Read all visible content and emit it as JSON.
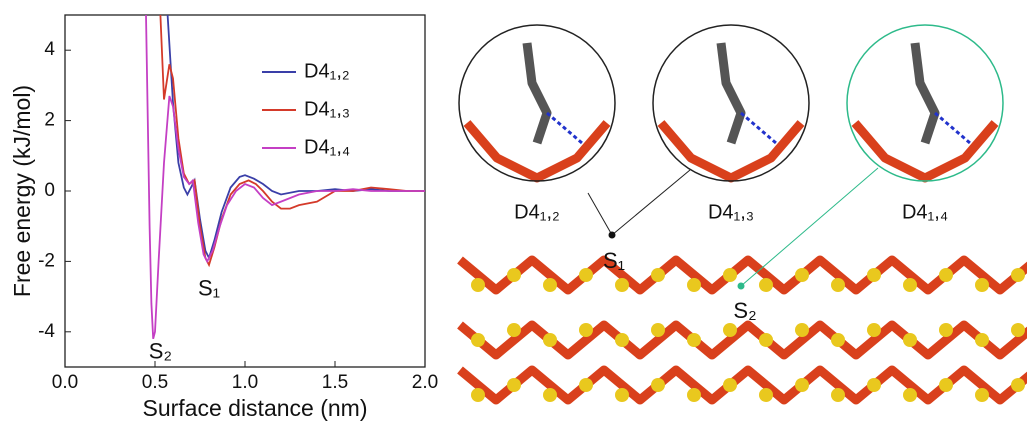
{
  "chart_data": {
    "type": "line",
    "x_label": "Surface distance (nm)",
    "y_label": "Free energy (kJ/mol)",
    "xlim": [
      0,
      2
    ],
    "ylim": [
      -5,
      5
    ],
    "xticks": [
      {
        "value": 0,
        "label": "0.0"
      },
      {
        "value": 0.5,
        "label": "0.5"
      },
      {
        "value": 1,
        "label": "1.0"
      },
      {
        "value": 1.5,
        "label": "1.5"
      },
      {
        "value": 2,
        "label": "2.0"
      }
    ],
    "yticks": [
      -4,
      -2,
      0,
      2,
      4
    ],
    "legend": "upper right",
    "series": [
      {
        "name": "D4₁,₂",
        "color": "#3a3fa8",
        "x": [
          0.57,
          0.6,
          0.63,
          0.66,
          0.68,
          0.7,
          0.72,
          0.75,
          0.78,
          0.8,
          0.83,
          0.87,
          0.92,
          0.97,
          1.0,
          1.05,
          1.1,
          1.15,
          1.2,
          1.3,
          1.4,
          1.5,
          1.6,
          1.7,
          1.8,
          1.9,
          2.0
        ],
        "values": [
          5,
          2.5,
          0.8,
          0.1,
          -0.1,
          0.1,
          0.3,
          -0.8,
          -1.7,
          -1.9,
          -1.4,
          -0.6,
          0.1,
          0.4,
          0.45,
          0.35,
          0.2,
          0.0,
          -0.1,
          0.0,
          0.0,
          0.05,
          0.0,
          0.05,
          0.0,
          0.0,
          0.0
        ]
      },
      {
        "name": "D4₁,₃",
        "color": "#d43a2a",
        "x": [
          0.53,
          0.55,
          0.58,
          0.6,
          0.63,
          0.66,
          0.69,
          0.72,
          0.75,
          0.78,
          0.8,
          0.83,
          0.87,
          0.92,
          0.97,
          1.02,
          1.06,
          1.1,
          1.15,
          1.2,
          1.25,
          1.3,
          1.4,
          1.5,
          1.6,
          1.7,
          1.8,
          1.9,
          2.0
        ],
        "values": [
          5,
          2.6,
          3.6,
          3.2,
          1.5,
          0.5,
          0.2,
          0.3,
          -1.0,
          -1.9,
          -2.1,
          -1.6,
          -0.8,
          -0.1,
          0.2,
          0.3,
          0.2,
          0.0,
          -0.3,
          -0.5,
          -0.5,
          -0.4,
          -0.3,
          0.0,
          0.0,
          0.1,
          0.05,
          0.0,
          0.0
        ]
      },
      {
        "name": "D4₁,₄",
        "color": "#c43fc4",
        "x": [
          0.45,
          0.46,
          0.47,
          0.48,
          0.49,
          0.5,
          0.52,
          0.55,
          0.58,
          0.6,
          0.63,
          0.66,
          0.69,
          0.71,
          0.74,
          0.77,
          0.79,
          0.82,
          0.86,
          0.9,
          0.95,
          1.0,
          1.05,
          1.1,
          1.15,
          1.2,
          1.3,
          1.4,
          1.5,
          1.6,
          1.7,
          1.8,
          1.9,
          2.0
        ],
        "values": [
          5,
          2.0,
          -1.0,
          -3.2,
          -4.2,
          -4.0,
          -2.0,
          0.8,
          2.7,
          2.4,
          1.2,
          0.4,
          0.2,
          0.3,
          -0.9,
          -1.8,
          -2.0,
          -1.7,
          -1.0,
          -0.4,
          0.0,
          0.2,
          0.1,
          -0.2,
          -0.4,
          -0.3,
          -0.1,
          0.0,
          0.0,
          0.05,
          0.0,
          0.0,
          0.0,
          0.0
        ]
      }
    ],
    "annotations": [
      {
        "text": "S₁",
        "x": 0.8,
        "y": -2.8,
        "color": "#111111"
      },
      {
        "text": "S₂",
        "x": 0.53,
        "y": -4.6,
        "color": "#2dba8a"
      }
    ]
  },
  "figure": {
    "labels": [
      "D4₁,₂",
      "D4₁,₃",
      "D4₁,₄",
      "S₁",
      "S₂"
    ]
  }
}
